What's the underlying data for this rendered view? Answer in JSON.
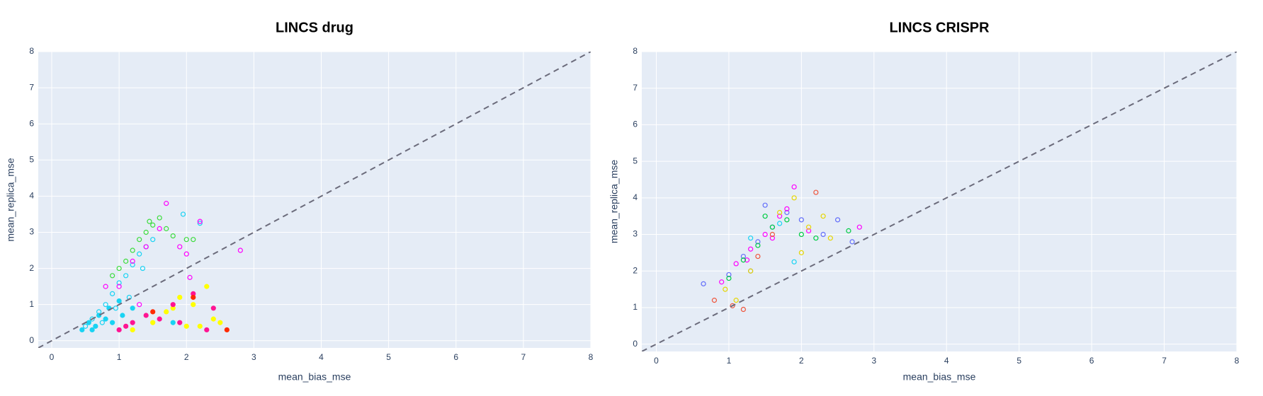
{
  "chart_data": [
    {
      "type": "scatter",
      "title": "LINCS drug",
      "x_label": "mean_bias_mse",
      "y_label": "mean_replica_mse",
      "xlim": [
        -0.2,
        8
      ],
      "ylim": [
        -0.2,
        8
      ],
      "xticks": [
        0,
        1,
        2,
        3,
        4,
        5,
        6,
        7,
        8
      ],
      "yticks": [
        0,
        1,
        2,
        3,
        4,
        5,
        6,
        7,
        8
      ],
      "grid": true,
      "reference_line": {
        "x": [
          -0.2,
          8
        ],
        "y": [
          -0.2,
          8
        ],
        "color": "#6b6b7b",
        "dash": "dashed"
      },
      "series": [
        {
          "color": "#19d3f3",
          "marker": "open",
          "x": [
            0.5,
            0.6,
            0.7,
            0.8,
            0.9,
            1.0,
            1.1,
            1.2,
            1.3,
            1.4,
            1.5,
            0.75,
            0.95,
            1.15,
            1.35,
            2.2,
            1.95
          ],
          "values": [
            0.4,
            0.6,
            0.8,
            1.0,
            1.3,
            1.6,
            1.8,
            2.1,
            2.4,
            2.6,
            2.8,
            0.5,
            0.9,
            1.2,
            2.0,
            3.25,
            3.5
          ]
        },
        {
          "color": "#19d3f3",
          "marker": "filled",
          "x": [
            0.45,
            0.55,
            0.65,
            0.7,
            0.8,
            0.85,
            0.9,
            1.0,
            1.05,
            1.2,
            0.6,
            1.8
          ],
          "values": [
            0.3,
            0.5,
            0.4,
            0.7,
            0.6,
            0.9,
            0.5,
            1.1,
            0.7,
            0.9,
            0.3,
            0.5
          ]
        },
        {
          "color": "#3ddc3d",
          "marker": "open",
          "x": [
            0.9,
            1.0,
            1.2,
            1.3,
            1.4,
            1.5,
            1.6,
            1.7,
            1.8,
            2.0,
            2.1,
            1.1,
            1.45
          ],
          "values": [
            1.8,
            2.0,
            2.5,
            2.8,
            3.0,
            3.2,
            3.4,
            3.1,
            2.9,
            2.8,
            2.8,
            2.2,
            3.3
          ]
        },
        {
          "color": "#ff00ff",
          "marker": "open",
          "x": [
            1.0,
            1.2,
            1.4,
            1.6,
            1.7,
            1.9,
            2.0,
            2.2,
            2.8,
            1.3,
            0.8,
            2.05
          ],
          "values": [
            1.5,
            2.2,
            2.6,
            3.1,
            3.8,
            2.6,
            2.4,
            3.3,
            2.5,
            1.0,
            1.5,
            1.75
          ]
        },
        {
          "color": "#ffff00",
          "marker": "filled",
          "x": [
            1.2,
            1.5,
            1.8,
            2.0,
            2.1,
            2.3,
            2.4,
            2.5,
            2.2,
            1.7,
            1.9
          ],
          "values": [
            0.3,
            0.5,
            0.9,
            0.4,
            1.0,
            1.5,
            0.6,
            0.5,
            0.4,
            0.8,
            1.2
          ]
        },
        {
          "color": "#ff1493",
          "marker": "filled",
          "x": [
            1.0,
            1.2,
            1.4,
            1.6,
            1.8,
            2.1,
            2.4,
            2.3,
            1.1,
            1.9
          ],
          "values": [
            0.3,
            0.5,
            0.7,
            0.6,
            1.0,
            1.3,
            0.9,
            0.3,
            0.4,
            0.5
          ]
        },
        {
          "color": "#ff2a00",
          "marker": "filled",
          "x": [
            2.6,
            2.1,
            1.5
          ],
          "values": [
            0.3,
            1.2,
            0.8
          ]
        }
      ]
    },
    {
      "type": "scatter",
      "title": "LINCS CRISPR",
      "x_label": "mean_bias_mse",
      "y_label": "mean_replica_mse",
      "xlim": [
        -0.2,
        8
      ],
      "ylim": [
        -0.2,
        8
      ],
      "xticks": [
        0,
        1,
        2,
        3,
        4,
        5,
        6,
        7,
        8
      ],
      "yticks": [
        0,
        1,
        2,
        3,
        4,
        5,
        6,
        7,
        8
      ],
      "grid": true,
      "reference_line": {
        "x": [
          -0.2,
          8
        ],
        "y": [
          -0.2,
          8
        ],
        "color": "#6b6b7b",
        "dash": "dashed"
      },
      "series": [
        {
          "color": "#636efa",
          "marker": "open",
          "x": [
            0.65,
            1.0,
            1.2,
            1.4,
            1.6,
            1.8,
            2.0,
            2.3,
            2.5,
            2.7,
            1.5,
            1.3
          ],
          "values": [
            1.65,
            1.9,
            2.4,
            2.8,
            3.2,
            3.6,
            3.4,
            3.0,
            3.4,
            2.8,
            3.8,
            2.0
          ]
        },
        {
          "color": "#ff00ff",
          "marker": "open",
          "x": [
            0.9,
            1.1,
            1.3,
            1.5,
            1.7,
            1.9,
            2.1,
            2.8,
            1.8,
            1.6,
            1.25
          ],
          "values": [
            1.7,
            2.2,
            2.6,
            3.0,
            3.5,
            4.3,
            3.1,
            3.2,
            3.7,
            2.9,
            2.3
          ]
        },
        {
          "color": "#00cc44",
          "marker": "open",
          "x": [
            1.0,
            1.2,
            1.4,
            1.6,
            1.8,
            2.0,
            2.2,
            2.65,
            1.5
          ],
          "values": [
            1.8,
            2.3,
            2.7,
            3.2,
            3.4,
            3.0,
            2.9,
            3.1,
            3.5
          ]
        },
        {
          "color": "#e6d600",
          "marker": "open",
          "x": [
            0.95,
            1.1,
            1.3,
            1.7,
            1.9,
            2.1,
            2.4,
            2.3,
            2.0
          ],
          "values": [
            1.5,
            1.2,
            2.0,
            3.6,
            4.0,
            3.2,
            2.9,
            3.5,
            2.5
          ]
        },
        {
          "color": "#ef553b",
          "marker": "open",
          "x": [
            0.8,
            1.05,
            1.2,
            1.4,
            1.6,
            2.2
          ],
          "values": [
            1.2,
            1.05,
            0.95,
            2.4,
            3.0,
            4.15
          ]
        },
        {
          "color": "#19d3f3",
          "marker": "open",
          "x": [
            1.9,
            1.3,
            1.7
          ],
          "values": [
            2.25,
            2.9,
            3.3
          ]
        }
      ]
    }
  ]
}
